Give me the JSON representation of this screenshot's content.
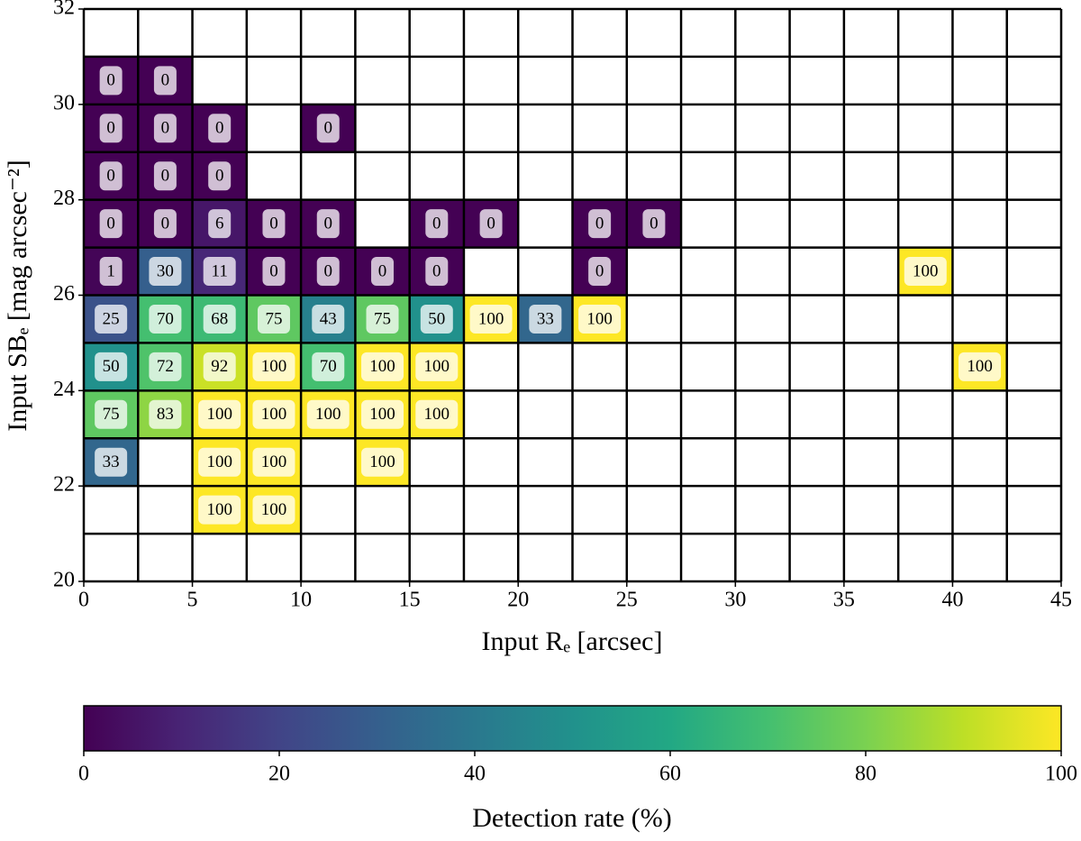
{
  "chart_data": {
    "type": "heatmap",
    "xlabel": "Input Rₑ [arcsec]",
    "ylabel": "Input SBₑ [mag arcsec⁻²]",
    "xbins": [
      0,
      2.5,
      5,
      7.5,
      10,
      12.5,
      15,
      17.5,
      20,
      22.5,
      25,
      27.5,
      30,
      32.5,
      35,
      37.5,
      40,
      42.5,
      45
    ],
    "ybins": [
      20,
      21,
      22,
      23,
      24,
      25,
      26,
      27,
      28,
      29,
      30,
      31,
      32
    ],
    "values": [
      [
        null,
        null,
        null,
        null,
        null,
        null,
        null,
        null,
        null,
        null,
        null,
        null,
        null,
        null,
        null,
        null,
        null,
        null
      ],
      [
        null,
        null,
        100,
        100,
        null,
        null,
        null,
        null,
        null,
        null,
        null,
        null,
        null,
        null,
        null,
        null,
        null,
        null
      ],
      [
        33,
        null,
        100,
        100,
        null,
        100,
        null,
        null,
        null,
        null,
        null,
        null,
        null,
        null,
        null,
        null,
        null,
        null
      ],
      [
        75,
        83,
        100,
        100,
        100,
        100,
        100,
        null,
        null,
        null,
        null,
        null,
        null,
        null,
        null,
        null,
        null,
        null
      ],
      [
        50,
        72,
        92,
        100,
        70,
        100,
        100,
        null,
        null,
        null,
        null,
        null,
        null,
        null,
        null,
        null,
        100,
        null
      ],
      [
        25,
        70,
        68,
        75,
        43,
        75,
        50,
        100,
        33,
        100,
        null,
        null,
        null,
        null,
        null,
        null,
        null,
        null
      ],
      [
        1,
        30,
        11,
        0,
        0,
        0,
        0,
        null,
        null,
        0,
        null,
        null,
        null,
        null,
        null,
        100,
        null,
        null
      ],
      [
        0,
        0,
        6,
        0,
        0,
        null,
        0,
        0,
        null,
        0,
        0,
        null,
        null,
        null,
        null,
        null,
        null,
        null
      ],
      [
        0,
        0,
        0,
        null,
        null,
        null,
        null,
        null,
        null,
        null,
        null,
        null,
        null,
        null,
        null,
        null,
        null,
        null
      ],
      [
        0,
        0,
        0,
        null,
        0,
        null,
        null,
        null,
        null,
        null,
        null,
        null,
        null,
        null,
        null,
        null,
        null,
        null
      ],
      [
        0,
        0,
        null,
        null,
        null,
        null,
        null,
        null,
        null,
        null,
        null,
        null,
        null,
        null,
        null,
        null,
        null,
        null
      ],
      [
        null,
        null,
        null,
        null,
        null,
        null,
        null,
        null,
        null,
        null,
        null,
        null,
        null,
        null,
        null,
        null,
        null,
        null
      ]
    ],
    "xlim": [
      0,
      45
    ],
    "xticks": [
      0,
      5,
      10,
      15,
      20,
      25,
      30,
      35,
      40,
      45
    ],
    "ylim": [
      20,
      32
    ],
    "yticks": [
      20,
      22,
      24,
      26,
      28,
      30,
      32
    ],
    "colormap": "viridis",
    "colorbar": {
      "label": "Detection rate (%)",
      "lim": [
        0,
        100
      ],
      "ticks": [
        0,
        20,
        40,
        60,
        80,
        100
      ]
    }
  }
}
